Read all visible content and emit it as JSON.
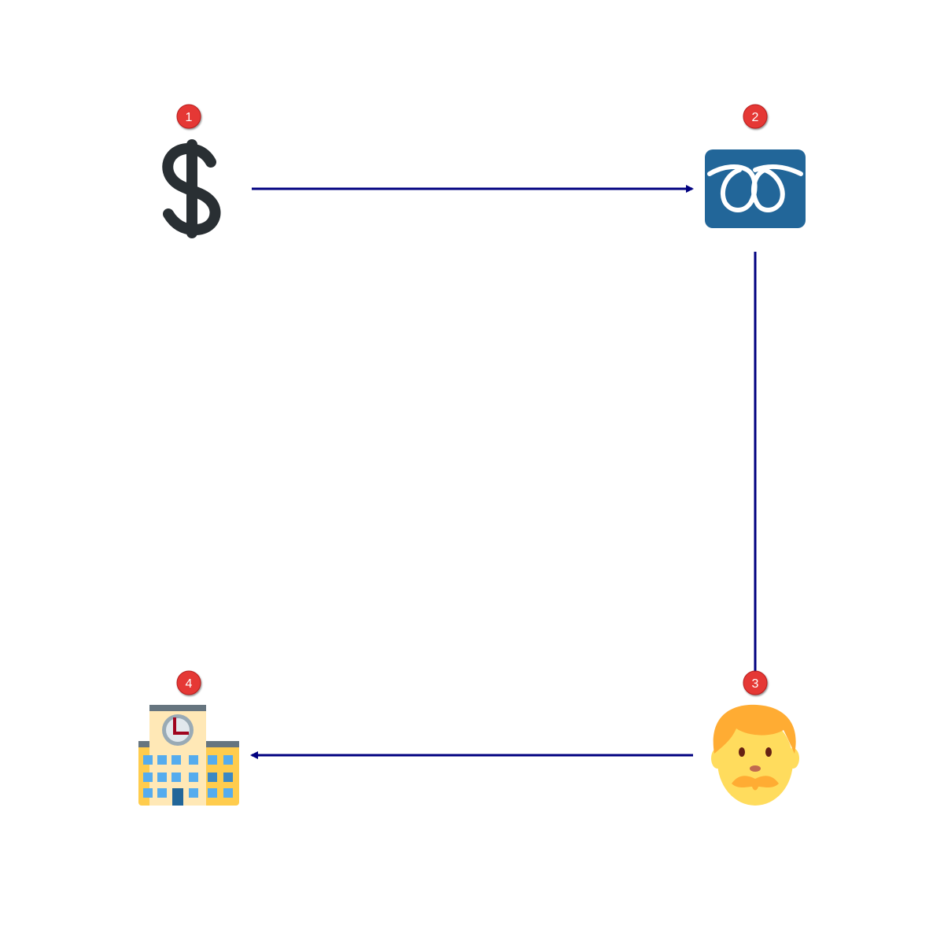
{
  "colors": {
    "background": "#ffffff",
    "edge": "#000080",
    "badge": "#e53935",
    "badge_stroke": "#b71c1c"
  },
  "nodes": [
    {
      "id": "1",
      "badge": "1",
      "icon": "dollar-sign-icon"
    },
    {
      "id": "2",
      "badge": "2",
      "icon": "toll-free-double-loop-icon"
    },
    {
      "id": "3",
      "badge": "3",
      "icon": "man-face-icon"
    },
    {
      "id": "4",
      "badge": "4",
      "icon": "office-building-icon"
    }
  ],
  "edges": [
    {
      "from": "1",
      "to": "2",
      "arrow": "end"
    },
    {
      "from": "2",
      "to": "3",
      "arrow": "none"
    },
    {
      "from": "3",
      "to": "4",
      "arrow": "end"
    }
  ]
}
